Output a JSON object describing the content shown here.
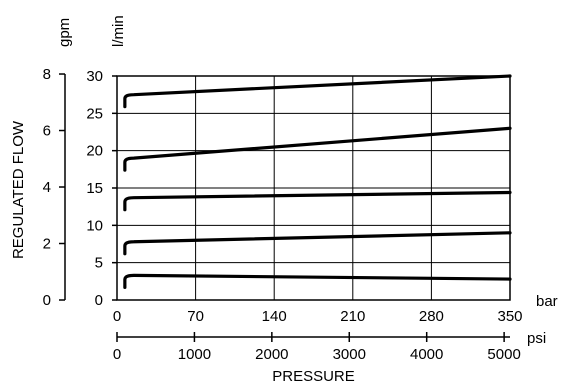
{
  "chart_data": {
    "type": "line",
    "xlabel": "PRESSURE",
    "ylabel": "REGULATED FLOW",
    "x_axis_bar": {
      "unit": "bar",
      "range": [
        0,
        350
      ],
      "ticks": [
        "0",
        "70",
        "140",
        "210",
        "280",
        "350"
      ]
    },
    "x_axis_psi": {
      "unit": "psi",
      "range": [
        0,
        5076
      ],
      "ticks": [
        "0",
        "1000",
        "2000",
        "3000",
        "4000",
        "5000"
      ]
    },
    "y_axis_lmin": {
      "unit": "l/min",
      "range": [
        0,
        30
      ],
      "ticks": [
        "0",
        "5",
        "10",
        "15",
        "20",
        "25",
        "30"
      ]
    },
    "y_axis_gpm": {
      "unit": "gpm",
      "range": [
        0,
        7.93
      ],
      "ticks": [
        "0",
        "2",
        "4",
        "6",
        "8"
      ]
    },
    "grid": true,
    "series": [
      {
        "x": [
          7,
          15,
          350
        ],
        "y": [
          27.5,
          27.5,
          30
        ]
      },
      {
        "x": [
          7,
          15,
          350
        ],
        "y": [
          19,
          19,
          23
        ]
      },
      {
        "x": [
          7,
          15,
          350
        ],
        "y": [
          13.7,
          13.7,
          14.4
        ]
      },
      {
        "x": [
          7,
          15,
          350
        ],
        "y": [
          7.8,
          7.8,
          9
        ]
      },
      {
        "x": [
          7,
          15,
          350
        ],
        "y": [
          3.3,
          3.3,
          2.8
        ]
      }
    ]
  }
}
